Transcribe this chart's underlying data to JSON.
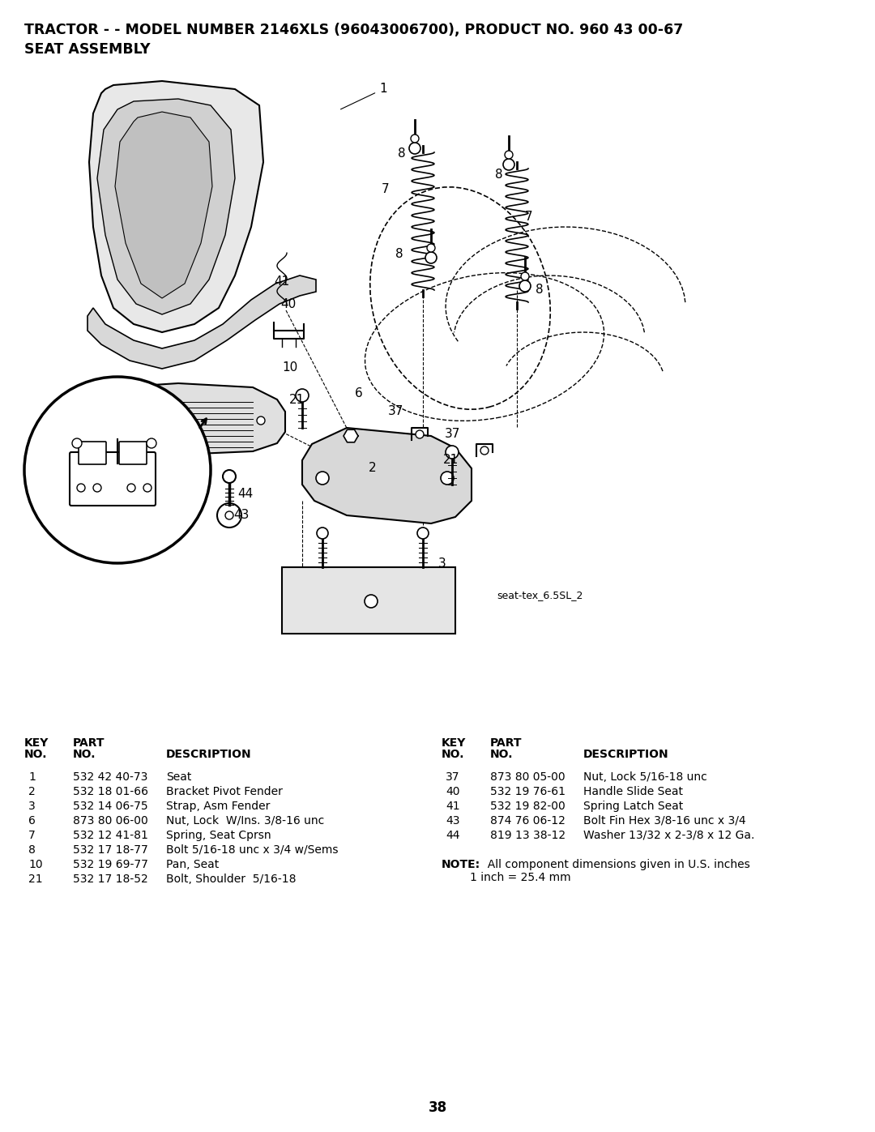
{
  "title_line1": "TRACTOR - - MODEL NUMBER 2146XLS (96043006700), PRODUCT NO. 960 43 00-67",
  "title_line2": "SEAT ASSEMBLY",
  "diagram_caption": "seat-tex_6.5SL_2",
  "page_number": "38",
  "bg_color": "#ffffff",
  "left_table": {
    "headers": [
      "KEY NO.",
      "PART NO.",
      "DESCRIPTION"
    ],
    "rows": [
      [
        "1",
        "532 42 40-73",
        "Seat"
      ],
      [
        "2",
        "532 18 01-66",
        "Bracket Pivot Fender"
      ],
      [
        "3",
        "532 14 06-75",
        "Strap, Asm Fender"
      ],
      [
        "6",
        "873 80 06-00",
        "Nut, Lock  W/Ins. 3/8-16 unc"
      ],
      [
        "7",
        "532 12 41-81",
        "Spring, Seat Cprsn"
      ],
      [
        "8",
        "532 17 18-77",
        "Bolt 5/16-18 unc x 3/4 w/Sems"
      ],
      [
        "10",
        "532 19 69-77",
        "Pan, Seat"
      ],
      [
        "21",
        "532 17 18-52",
        "Bolt, Shoulder  5/16-18"
      ]
    ]
  },
  "right_table": {
    "headers": [
      "KEY NO.",
      "PART NO.",
      "DESCRIPTION"
    ],
    "rows": [
      [
        "37",
        "873 80 05-00",
        "Nut, Lock 5/16-18 unc"
      ],
      [
        "40",
        "532 19 76-61",
        "Handle Slide Seat"
      ],
      [
        "41",
        "532 19 82-00",
        "Spring Latch Seat"
      ],
      [
        "43",
        "874 76 06-12",
        "Bolt Fin Hex 3/8-16 unc x 3/4"
      ],
      [
        "44",
        "819 13 38-12",
        "Washer 13/32 x 2-3/8 x 12 Ga."
      ]
    ]
  },
  "note_bold": "NOTE:",
  "note_text1": "  All component dimensions given in U.S. inches",
  "note_text2": "        1 inch = 25.4 mm"
}
